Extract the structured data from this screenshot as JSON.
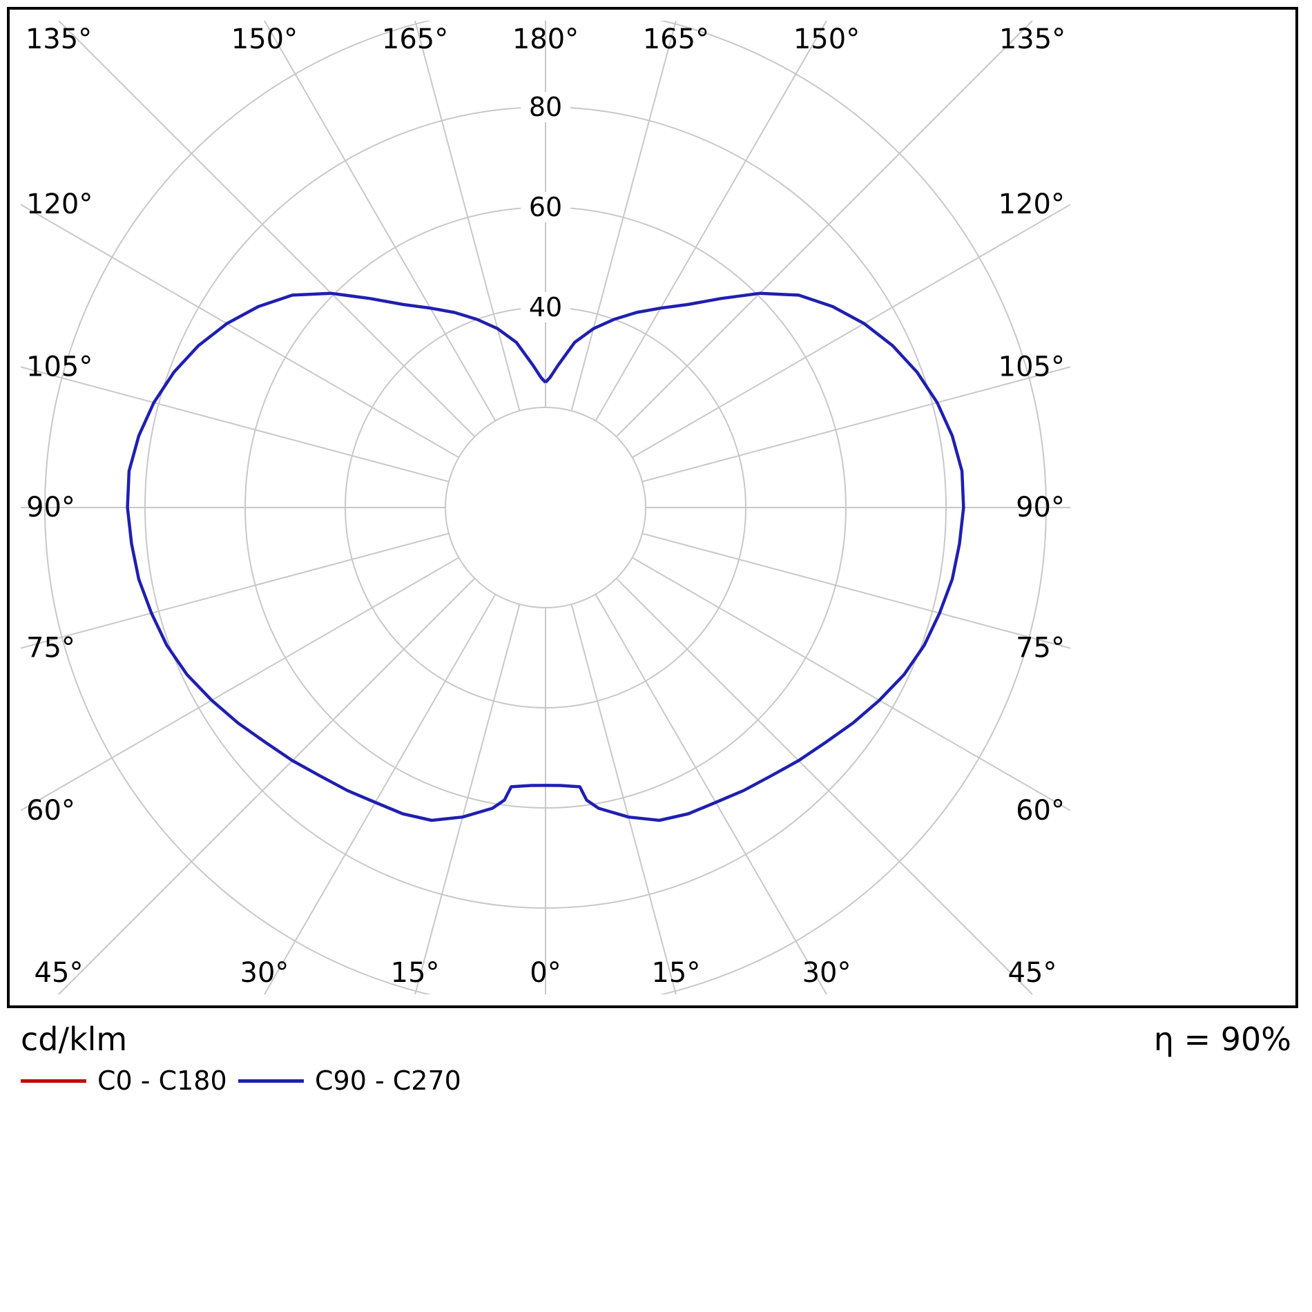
{
  "chart_data": {
    "type": "line",
    "subtype": "polar-photometric",
    "unit": "cd/klm",
    "efficiency": "η = 90%",
    "grid_color": "#c8c8c8",
    "ring_step": 20,
    "rings": [
      20,
      40,
      60,
      80,
      100
    ],
    "ring_labels": [
      40,
      60,
      80
    ],
    "angle_grid_step_deg": 15,
    "angle_labels_deg": [
      0,
      15,
      30,
      45,
      60,
      75,
      90,
      105,
      120,
      135,
      150,
      165,
      180
    ],
    "gamma_axis_note": "0 deg points downward, 180 deg upward, curves mirrored left/right",
    "series": [
      {
        "name": "C0 - C180",
        "color": "#c00000",
        "stroke_width": 3.5,
        "gamma_deg": [
          0,
          3,
          7,
          8,
          10,
          15,
          20,
          25,
          30,
          35,
          40,
          45,
          50,
          55,
          60,
          65,
          70,
          75,
          80,
          85,
          90,
          95,
          100,
          105,
          110,
          115,
          120,
          125,
          130,
          135,
          140,
          145,
          150,
          155,
          160,
          165,
          170,
          175,
          178,
          180
        ],
        "values": [
          55.5,
          55.6,
          56.2,
          59,
          61,
          64,
          66.5,
          67.5,
          68,
          69,
          70,
          71.5,
          73,
          75,
          77,
          79,
          80.5,
          81.5,
          82.5,
          83,
          83.5,
          83.5,
          82.5,
          81,
          79,
          76.5,
          73.5,
          70,
          66,
          60.5,
          54.5,
          49.5,
          46,
          43,
          40,
          37,
          33.5,
          28.5,
          26,
          25
        ]
      },
      {
        "name": "C90 - C270",
        "color": "#1f1fb0",
        "stroke_width": 4.5,
        "gamma_deg": [
          0,
          3,
          7,
          8,
          10,
          15,
          20,
          25,
          30,
          35,
          40,
          45,
          50,
          55,
          60,
          65,
          70,
          75,
          80,
          85,
          90,
          95,
          100,
          105,
          110,
          115,
          120,
          125,
          130,
          135,
          140,
          145,
          150,
          155,
          160,
          165,
          170,
          175,
          178,
          180
        ],
        "values": [
          55.5,
          55.6,
          56.2,
          59,
          61,
          64,
          66.5,
          67.5,
          68,
          69,
          70,
          71.5,
          73,
          75,
          77,
          79,
          80.5,
          81.5,
          82.5,
          83,
          83.5,
          83.5,
          82.5,
          81,
          79,
          76.5,
          73.5,
          70,
          66,
          60.5,
          54.5,
          49.5,
          46,
          43,
          40,
          37,
          33.5,
          28.5,
          26,
          25
        ]
      }
    ]
  }
}
